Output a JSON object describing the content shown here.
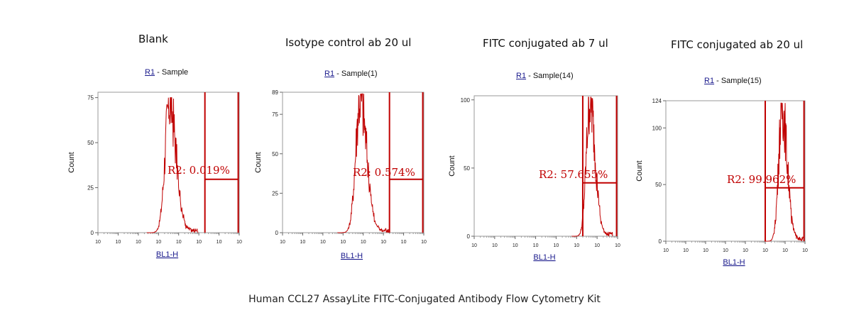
{
  "figure_caption": "Human CCL27 AssayLite FITC-Conjugated Antibody Flow Cytometry Kit",
  "chart_data": [
    {
      "type": "histogram",
      "title": "Blank",
      "sample_label": {
        "gate": "R1",
        "text": " - Sample"
      },
      "xlabel": "BL1-H",
      "ylabel": "Count",
      "xscale": "log",
      "xlim": [
        1,
        10000000
      ],
      "xticks": [
        "10",
        "10",
        "10",
        "10",
        "10",
        "10",
        "10",
        "10"
      ],
      "ylim": [
        0,
        78
      ],
      "yticks": [
        0,
        25,
        50,
        75
      ],
      "peak_center_log": 3.55,
      "peak_width_log": 0.28,
      "peak_max": 75,
      "gate_region": {
        "name": "R2",
        "percent_label": "R2: 0.019%",
        "x_start_log": 5.3,
        "x_end_log": 6.95
      }
    },
    {
      "type": "histogram",
      "title": "Isotype control ab 20 ul",
      "sample_label": {
        "gate": "R1",
        "text": " - Sample(1)"
      },
      "xlabel": "BL1-H",
      "ylabel": "Count",
      "xscale": "log",
      "xlim": [
        1,
        10000000
      ],
      "xticks": [
        "10",
        "10",
        "10",
        "10",
        "10",
        "10",
        "10",
        "10"
      ],
      "ylim": [
        0,
        89
      ],
      "yticks": [
        0,
        25,
        50,
        75,
        89
      ],
      "peak_center_log": 3.85,
      "peak_width_log": 0.28,
      "peak_max": 88,
      "gate_region": {
        "name": "R2",
        "percent_label": "R2: 0.574%",
        "x_start_log": 5.3,
        "x_end_log": 6.95
      }
    },
    {
      "type": "histogram",
      "title": "FITC conjugated ab 7 ul",
      "sample_label": {
        "gate": "R1",
        "text": " - Sample(14)"
      },
      "xlabel": "BL1-H",
      "ylabel": "Count",
      "xscale": "log",
      "xlim": [
        1,
        10000000
      ],
      "xticks": [
        "10",
        "10",
        "10",
        "10",
        "10",
        "10",
        "10",
        "10"
      ],
      "ylim": [
        0,
        103
      ],
      "yticks": [
        0,
        50,
        100
      ],
      "peak_center_log": 5.65,
      "peak_width_log": 0.22,
      "peak_max": 102,
      "gate_region": {
        "name": "R2",
        "percent_label": "R2: 57.655%",
        "x_start_log": 5.3,
        "x_end_log": 6.95
      }
    },
    {
      "type": "histogram",
      "title": "FITC conjugated ab 20 ul",
      "sample_label": {
        "gate": "R1",
        "text": " - Sample(15)"
      },
      "xlabel": "BL1-H",
      "ylabel": "Count",
      "xscale": "log",
      "xlim": [
        1,
        10000000
      ],
      "xticks": [
        "10",
        "10",
        "10",
        "10",
        "10",
        "10",
        "10",
        "10"
      ],
      "ylim": [
        0,
        124
      ],
      "yticks": [
        0,
        50,
        100,
        124
      ],
      "peak_center_log": 5.85,
      "peak_width_log": 0.22,
      "peak_max": 122,
      "gate_region": {
        "name": "R2",
        "percent_label": "R2: 99.962%",
        "x_start_log": 5.0,
        "x_end_log": 6.95
      }
    }
  ]
}
